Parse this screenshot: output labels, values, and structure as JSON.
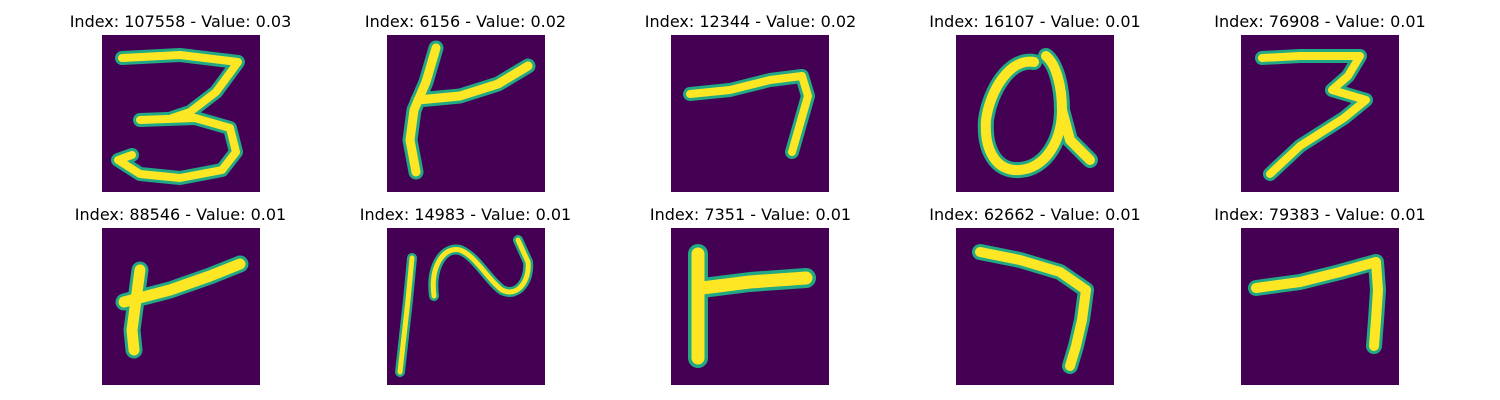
{
  "figure": {
    "colormap": "viridis",
    "background_color": "#440154",
    "stroke_color": "#fde725",
    "edge_color": "#22a884",
    "panels": [
      {
        "title": "Index: 107558 - Value: 0.03",
        "glyph": "digit-3"
      },
      {
        "title": "Index: 6156 - Value: 0.02",
        "glyph": "digit-4-like"
      },
      {
        "title": "Index: 12344 - Value: 0.02",
        "glyph": "digit-7"
      },
      {
        "title": "Index: 16107 - Value: 0.01",
        "glyph": "loop-letter-a"
      },
      {
        "title": "Index: 76908 - Value: 0.01",
        "glyph": "digit-3"
      },
      {
        "title": "Index: 88546 - Value: 0.01",
        "glyph": "digit-4-like"
      },
      {
        "title": "Index: 14983 - Value: 0.01",
        "glyph": "digit-2-like"
      },
      {
        "title": "Index: 7351 - Value: 0.01",
        "glyph": "digit-4-like"
      },
      {
        "title": "Index: 62662 - Value: 0.01",
        "glyph": "digit-7"
      },
      {
        "title": "Index: 79383 - Value: 0.01",
        "glyph": "digit-7"
      }
    ]
  }
}
